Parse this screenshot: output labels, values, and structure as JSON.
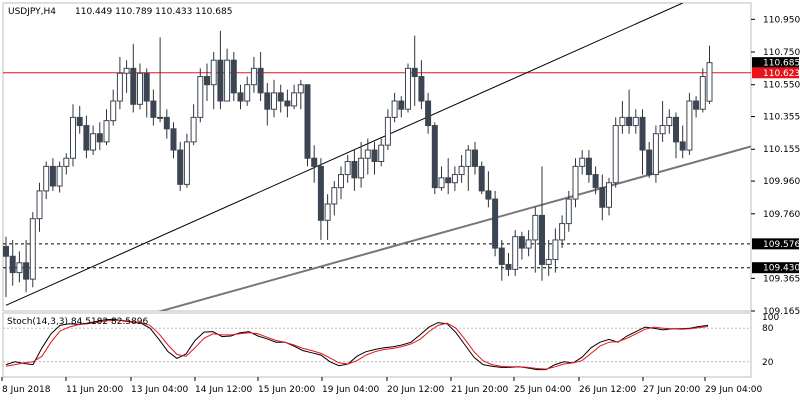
{
  "header": {
    "symbol": "USDJPY,H4",
    "ohlc": "110.449 110.789 110.433 110.685"
  },
  "chart_data": [
    {
      "type": "candlestick",
      "symbol": "USDJPY",
      "timeframe": "H4",
      "ylim": [
        109.165,
        111.05
      ],
      "price_ticks": [
        "110.950",
        "110.750",
        "110.550",
        "110.355",
        "110.155",
        "109.960",
        "109.760",
        "109.365",
        "109.165"
      ],
      "x_labels": [
        "8 Jun 2018",
        "11 Jun 20:00",
        "13 Jun 04:00",
        "14 Jun 12:00",
        "15 Jun 20:00",
        "19 Jun 04:00",
        "20 Jun 12:00",
        "21 Jun 20:00",
        "25 Jun 04:00",
        "26 Jun 12:00",
        "27 Jun 20:00",
        "29 Jun 04:00"
      ],
      "price_labels": [
        {
          "text": "110.685",
          "value": 110.685,
          "bg": "#000000"
        },
        {
          "text": "110.623",
          "value": 110.623,
          "bg": "#e8141c"
        },
        {
          "text": "109.576",
          "value": 109.576,
          "bg": "#000000"
        },
        {
          "text": "109.430",
          "value": 109.43,
          "bg": "#000000"
        }
      ],
      "levels": [
        {
          "value": 110.623,
          "style": "solid",
          "color": "#e8141c"
        },
        {
          "value": 109.576,
          "style": "dashed",
          "color": "#000000"
        },
        {
          "value": 109.43,
          "style": "dashed",
          "color": "#000000"
        }
      ],
      "trendlines": [
        {
          "from": [
            0,
            109.2
          ],
          "to": [
            101,
            111.05
          ],
          "color": "#000000"
        },
        {
          "from": [
            21,
            109.14
          ],
          "to": [
            125,
            110.33
          ],
          "color": "#777777"
        }
      ],
      "candles": [
        [
          109.56,
          109.5,
          109.62,
          109.25
        ],
        [
          109.5,
          109.4,
          109.6,
          109.32
        ],
        [
          109.4,
          109.46,
          109.53,
          109.34
        ],
        [
          109.46,
          109.36,
          109.6,
          109.28
        ],
        [
          109.36,
          109.73,
          109.77,
          109.31
        ],
        [
          109.73,
          109.9,
          109.95,
          109.65
        ],
        [
          109.9,
          110.05,
          110.08,
          109.85
        ],
        [
          110.05,
          109.93,
          110.1,
          109.9
        ],
        [
          109.93,
          110.05,
          110.08,
          109.89
        ],
        [
          110.05,
          110.1,
          110.13,
          110.0
        ],
        [
          110.1,
          110.35,
          110.43,
          110.05
        ],
        [
          110.35,
          110.3,
          110.42,
          110.25
        ],
        [
          110.3,
          110.15,
          110.36,
          110.1
        ],
        [
          110.15,
          110.25,
          110.3,
          110.12
        ],
        [
          110.25,
          110.2,
          110.32,
          110.15
        ],
        [
          110.2,
          110.33,
          110.4,
          110.18
        ],
        [
          110.33,
          110.45,
          110.52,
          110.3
        ],
        [
          110.45,
          110.62,
          110.72,
          110.4
        ],
        [
          110.62,
          110.65,
          110.7,
          110.5
        ],
        [
          110.65,
          110.43,
          110.8,
          110.38
        ],
        [
          110.43,
          110.62,
          110.68,
          110.4
        ],
        [
          110.62,
          110.45,
          110.65,
          110.35
        ],
        [
          110.45,
          110.35,
          110.52,
          110.3
        ],
        [
          110.35,
          110.35,
          110.84,
          110.32
        ],
        [
          110.35,
          110.28,
          110.4,
          110.22
        ],
        [
          110.28,
          110.15,
          110.32,
          110.1
        ],
        [
          110.15,
          109.94,
          110.2,
          109.9
        ],
        [
          109.94,
          110.2,
          110.25,
          109.92
        ],
        [
          110.2,
          110.35,
          110.43,
          110.18
        ],
        [
          110.35,
          110.6,
          110.65,
          110.32
        ],
        [
          110.6,
          110.55,
          110.68,
          110.45
        ],
        [
          110.55,
          110.7,
          110.75,
          110.4
        ],
        [
          110.7,
          110.45,
          110.88,
          110.4
        ],
        [
          110.45,
          110.7,
          110.77,
          110.45
        ],
        [
          110.7,
          110.5,
          110.75,
          110.45
        ],
        [
          110.5,
          110.45,
          110.55,
          110.4
        ],
        [
          110.45,
          110.55,
          110.6,
          110.42
        ],
        [
          110.55,
          110.65,
          110.72,
          110.5
        ],
        [
          110.65,
          110.5,
          110.75,
          110.45
        ],
        [
          110.5,
          110.4,
          110.56,
          110.3
        ],
        [
          110.4,
          110.5,
          110.58,
          110.35
        ],
        [
          110.5,
          110.45,
          110.55,
          110.38
        ],
        [
          110.45,
          110.42,
          110.52,
          110.35
        ],
        [
          110.42,
          110.5,
          110.55,
          110.4
        ],
        [
          110.5,
          110.55,
          110.58,
          110.4
        ],
        [
          110.55,
          110.1,
          110.55,
          110.05
        ],
        [
          110.1,
          110.05,
          110.18,
          109.95
        ],
        [
          110.05,
          109.72,
          110.1,
          109.6
        ],
        [
          109.72,
          109.82,
          109.88,
          109.6
        ],
        [
          109.82,
          109.92,
          109.96,
          109.75
        ],
        [
          109.92,
          110.0,
          110.05,
          109.85
        ],
        [
          110.0,
          110.08,
          110.12,
          109.95
        ],
        [
          110.08,
          109.98,
          110.15,
          109.9
        ],
        [
          109.98,
          110.1,
          110.2,
          109.92
        ],
        [
          110.1,
          110.15,
          110.22,
          110.0
        ],
        [
          110.15,
          110.08,
          110.2,
          110.0
        ],
        [
          110.08,
          110.18,
          110.22,
          110.05
        ],
        [
          110.18,
          110.35,
          110.4,
          110.15
        ],
        [
          110.35,
          110.45,
          110.5,
          110.32
        ],
        [
          110.45,
          110.4,
          110.48,
          110.35
        ],
        [
          110.4,
          110.65,
          110.68,
          110.38
        ],
        [
          110.65,
          110.6,
          110.85,
          110.42
        ],
        [
          110.6,
          110.45,
          110.7,
          110.4
        ],
        [
          110.45,
          110.3,
          110.5,
          110.25
        ],
        [
          110.3,
          109.92,
          110.32,
          109.88
        ],
        [
          109.92,
          109.98,
          110.05,
          109.9
        ],
        [
          109.98,
          109.95,
          110.1,
          109.88
        ],
        [
          109.95,
          110.0,
          110.05,
          109.9
        ],
        [
          110.0,
          110.05,
          110.12,
          109.95
        ],
        [
          110.05,
          110.15,
          110.18,
          109.9
        ],
        [
          110.15,
          110.05,
          110.2,
          110.0
        ],
        [
          110.05,
          109.9,
          110.08,
          109.88
        ],
        [
          109.9,
          109.85,
          110.02,
          109.8
        ],
        [
          109.85,
          109.55,
          109.9,
          109.5
        ],
        [
          109.55,
          109.45,
          109.6,
          109.35
        ],
        [
          109.45,
          109.42,
          109.52,
          109.38
        ],
        [
          109.42,
          109.62,
          109.66,
          109.38
        ],
        [
          109.62,
          109.55,
          109.65,
          109.48
        ],
        [
          109.55,
          109.6,
          109.66,
          109.5
        ],
        [
          109.6,
          109.75,
          109.8,
          109.4
        ],
        [
          109.75,
          109.45,
          110.05,
          109.35
        ],
        [
          109.45,
          109.48,
          109.6,
          109.38
        ],
        [
          109.48,
          109.6,
          109.67,
          109.4
        ],
        [
          109.6,
          109.7,
          109.75,
          109.55
        ],
        [
          109.7,
          109.85,
          109.9,
          109.65
        ],
        [
          109.85,
          110.05,
          110.1,
          109.8
        ],
        [
          110.05,
          110.1,
          110.15,
          110.0
        ],
        [
          110.1,
          110.0,
          110.15,
          109.95
        ],
        [
          110.0,
          109.92,
          110.05,
          109.88
        ],
        [
          109.92,
          109.8,
          110.0,
          109.72
        ],
        [
          109.8,
          109.95,
          109.98,
          109.75
        ],
        [
          109.95,
          110.3,
          110.35,
          109.92
        ],
        [
          110.3,
          110.35,
          110.45,
          110.25
        ],
        [
          110.35,
          110.3,
          110.52,
          110.25
        ],
        [
          110.3,
          110.35,
          110.4,
          110.25
        ],
        [
          110.35,
          110.15,
          110.4,
          110.0
        ],
        [
          110.15,
          110.0,
          110.2,
          109.98
        ],
        [
          110.0,
          110.25,
          110.3,
          109.95
        ],
        [
          110.25,
          110.3,
          110.45,
          110.2
        ],
        [
          110.3,
          110.35,
          110.4,
          110.25
        ],
        [
          110.35,
          110.2,
          110.38,
          110.1
        ],
        [
          110.2,
          110.15,
          110.3,
          110.1
        ],
        [
          110.15,
          110.45,
          110.5,
          110.12
        ],
        [
          110.45,
          110.4,
          110.48,
          110.35
        ],
        [
          110.4,
          110.6,
          110.65,
          110.38
        ],
        [
          110.449,
          110.685,
          110.789,
          110.433
        ]
      ]
    },
    {
      "type": "line",
      "title": "Stoch(14,3,3) 84.5182 82.5896",
      "ylim": [
        0,
        100
      ],
      "levels": [
        20,
        80
      ],
      "y_ticks": [
        "100",
        "80",
        "20"
      ],
      "series": [
        {
          "name": "main",
          "color": "#000000",
          "values": [
            15,
            20,
            17,
            15,
            45,
            70,
            85,
            88,
            87,
            89,
            92,
            95,
            96,
            93,
            91,
            89,
            80,
            60,
            38,
            26,
            34,
            58,
            73,
            74,
            65,
            66,
            72,
            74,
            66,
            61,
            55,
            55,
            48,
            40,
            36,
            32,
            20,
            13,
            16,
            30,
            38,
            42,
            45,
            47,
            50,
            55,
            68,
            82,
            90,
            88,
            72,
            50,
            28,
            15,
            12,
            10,
            10,
            11,
            9,
            6,
            6,
            15,
            20,
            18,
            28,
            45,
            55,
            60,
            55,
            66,
            74,
            82,
            80,
            77,
            79,
            79,
            80,
            83,
            85
          ]
        },
        {
          "name": "signal",
          "color": "#e8141c",
          "values": [
            12,
            15,
            18,
            20,
            30,
            55,
            75,
            82,
            86,
            88,
            90,
            93,
            94,
            94,
            92,
            90,
            85,
            70,
            50,
            33,
            30,
            45,
            62,
            70,
            68,
            68,
            70,
            72,
            70,
            64,
            58,
            55,
            50,
            44,
            40,
            35,
            27,
            18,
            16,
            22,
            32,
            38,
            42,
            44,
            47,
            52,
            60,
            74,
            85,
            89,
            80,
            60,
            38,
            22,
            15,
            12,
            11,
            11,
            10,
            8,
            7,
            11,
            16,
            18,
            22,
            35,
            48,
            55,
            56,
            62,
            70,
            78,
            82,
            80,
            79,
            78,
            79,
            81,
            83
          ]
        }
      ]
    }
  ]
}
